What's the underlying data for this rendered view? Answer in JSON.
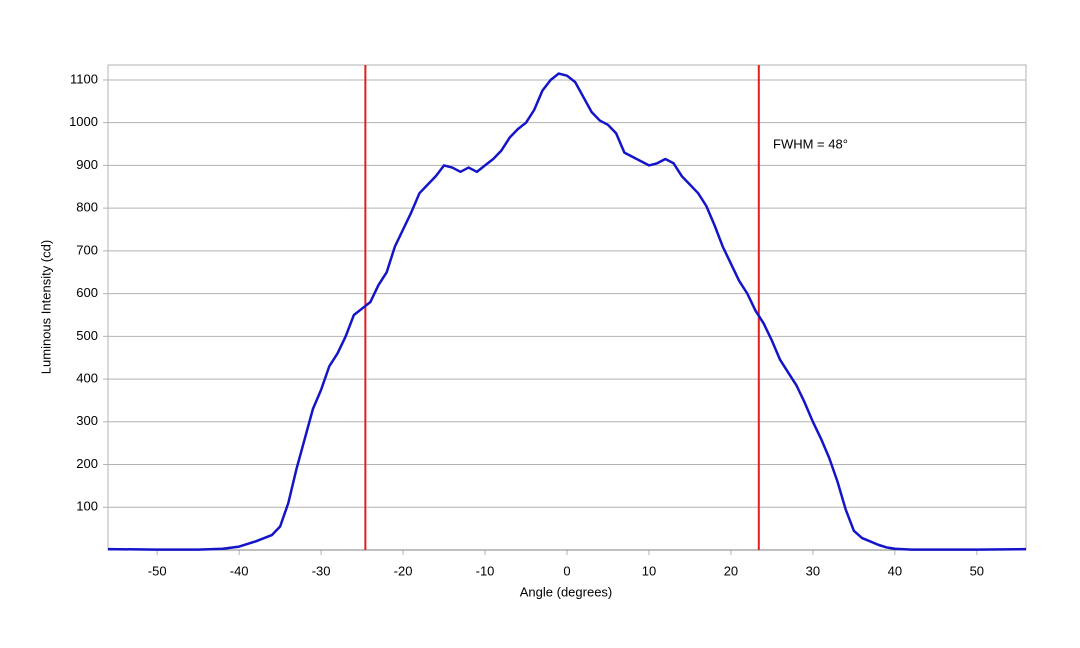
{
  "chart_data": {
    "type": "line",
    "x_label": "Angle (degrees)",
    "y_label": "Luminous Intensity (cd)",
    "annotation": "FWHM = 48°",
    "x": [
      -56,
      -50,
      -45,
      -42,
      -40,
      -38,
      -36,
      -35,
      -34,
      -33,
      -32,
      -31,
      -30,
      -29,
      -28,
      -27,
      -26,
      -25,
      -24,
      -23,
      -22,
      -21,
      -20,
      -19,
      -18,
      -17,
      -16,
      -15,
      -14,
      -13,
      -12,
      -11,
      -10,
      -9,
      -8,
      -7,
      -6,
      -5,
      -4,
      -3,
      -2,
      -1,
      0,
      1,
      2,
      3,
      4,
      5,
      6,
      7,
      8,
      9,
      10,
      11,
      12,
      13,
      14,
      15,
      16,
      17,
      18,
      19,
      20,
      21,
      22,
      23,
      24,
      25,
      26,
      27,
      28,
      29,
      30,
      31,
      32,
      33,
      34,
      35,
      36,
      37,
      38,
      39,
      40,
      42,
      45,
      50,
      56
    ],
    "series": [
      {
        "name": "Luminous Intensity",
        "color": "#1414c8",
        "values": [
          2,
          1,
          1,
          3,
          8,
          20,
          35,
          55,
          110,
          190,
          260,
          330,
          375,
          430,
          460,
          500,
          550,
          565,
          580,
          620,
          650,
          710,
          750,
          790,
          835,
          855,
          875,
          900,
          895,
          885,
          895,
          885,
          900,
          915,
          935,
          965,
          985,
          1000,
          1030,
          1075,
          1100,
          1115,
          1110,
          1095,
          1060,
          1025,
          1005,
          995,
          975,
          930,
          920,
          910,
          900,
          905,
          915,
          905,
          875,
          855,
          835,
          805,
          760,
          710,
          670,
          630,
          600,
          560,
          530,
          490,
          445,
          415,
          385,
          345,
          300,
          260,
          215,
          160,
          95,
          45,
          28,
          20,
          12,
          6,
          3,
          1,
          1,
          1,
          2
        ]
      }
    ],
    "vlines": [
      -24.6,
      23.4
    ],
    "vline_color": "#e02020",
    "xlim": [
      -56,
      56
    ],
    "ylim": [
      0,
      1135
    ],
    "xticks": [
      -50,
      -40,
      -30,
      -20,
      -10,
      0,
      10,
      20,
      30,
      40,
      50
    ],
    "yticks": [
      100,
      200,
      300,
      400,
      500,
      600,
      700,
      800,
      900,
      1000,
      1100
    ],
    "grid": true
  }
}
